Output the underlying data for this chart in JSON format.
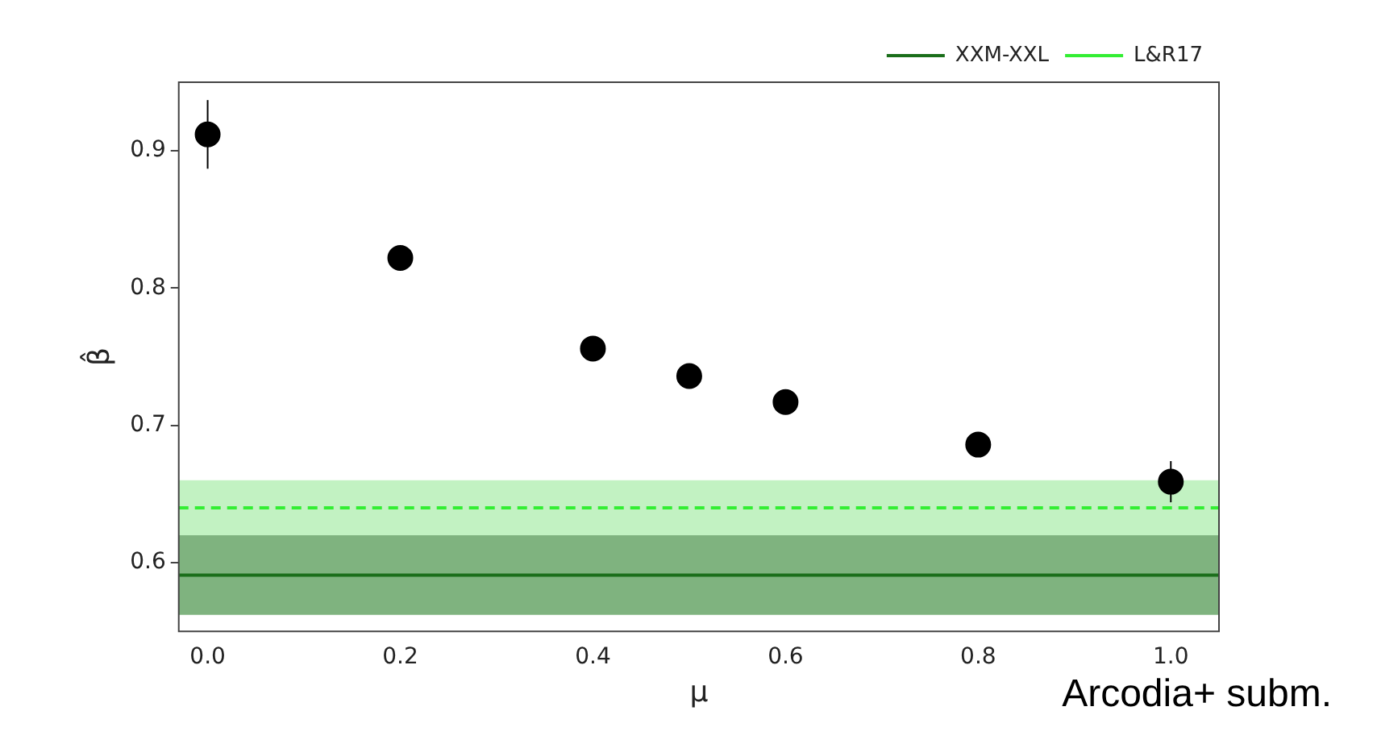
{
  "chart_data": {
    "type": "scatter",
    "xlabel": "μ",
    "ylabel": "β̂",
    "x": [
      0.0,
      0.2,
      0.4,
      0.5,
      0.6,
      0.8,
      1.0
    ],
    "series": [
      {
        "color": "#000000",
        "values": [
          0.912,
          0.822,
          0.756,
          0.736,
          0.717,
          0.686,
          0.659
        ],
        "errors": [
          0.025,
          0.007,
          0.004,
          0.004,
          0.004,
          0.008,
          0.015
        ]
      }
    ],
    "marker": "circle",
    "xlim": [
      -0.03,
      1.05
    ],
    "xticks": [
      {
        "value": 0.0,
        "label": "0.0"
      },
      0.2,
      0.4,
      0.6,
      0.8,
      {
        "value": 1.0,
        "label": "1.0"
      }
    ],
    "ylim": [
      0.55,
      0.95
    ],
    "yticks": [
      0.6,
      0.7,
      0.8,
      0.9
    ],
    "bands": [
      {
        "axis": "y",
        "from": 0.62,
        "to": 0.66,
        "color": "#c2f2c2"
      },
      {
        "axis": "y",
        "from": 0.562,
        "to": 0.62,
        "color": "#7fb37f"
      }
    ],
    "ref_lines": [
      {
        "axis": "y",
        "value": 0.591,
        "label": "XXM-XXL",
        "color": "#1a6e1a",
        "line_style": "solid"
      },
      {
        "axis": "y",
        "value": 0.64,
        "label": "L&R17",
        "color": "#33ee33",
        "line_style": "dashed"
      }
    ],
    "grid": false,
    "legend": "top right",
    "annotations": [
      "Arcodia+ subm."
    ]
  }
}
